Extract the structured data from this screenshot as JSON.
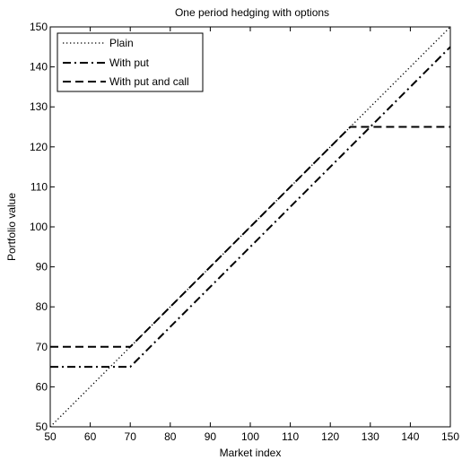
{
  "chart_data": {
    "type": "line",
    "title": "One period hedging with options",
    "xlabel": "Market index",
    "ylabel": "Portfolio value",
    "xlim": [
      50,
      150
    ],
    "ylim": [
      50,
      150
    ],
    "xticks": [
      50,
      60,
      70,
      80,
      90,
      100,
      110,
      120,
      130,
      140,
      150
    ],
    "yticks": [
      50,
      60,
      70,
      80,
      90,
      100,
      110,
      120,
      130,
      140,
      150
    ],
    "grid": false,
    "legend_position": "top-left",
    "series": [
      {
        "name": "Plain",
        "style": "dotted",
        "x": [
          50,
          150
        ],
        "y": [
          50,
          150
        ]
      },
      {
        "name": "With put",
        "style": "dashdot",
        "x": [
          50,
          70,
          150
        ],
        "y": [
          65,
          65,
          145
        ]
      },
      {
        "name": "With put and call",
        "style": "dashed",
        "x": [
          50,
          70,
          125,
          150
        ],
        "y": [
          70,
          70,
          125,
          125
        ]
      }
    ]
  }
}
